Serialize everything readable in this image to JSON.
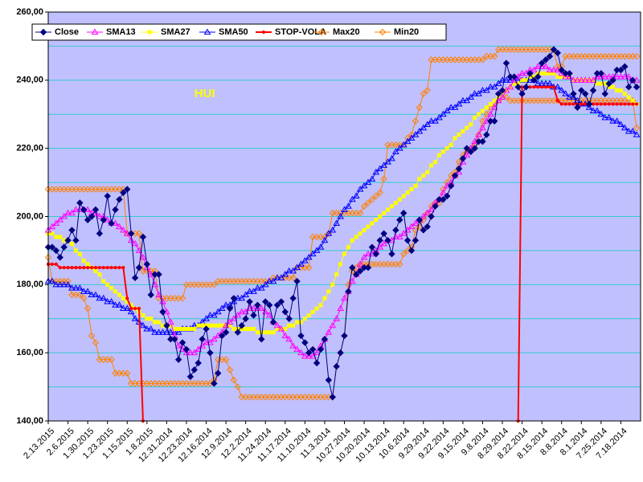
{
  "chart_data": {
    "type": "line",
    "annotation": {
      "text": "HUI",
      "x_index": 37,
      "y": 236
    },
    "categories": [
      "2.13.2015",
      null,
      null,
      null,
      null,
      "2.6.2015",
      null,
      null,
      null,
      null,
      "1.30.2015",
      null,
      null,
      null,
      null,
      "1.23.2015",
      null,
      null,
      null,
      null,
      "1.15.2015",
      null,
      null,
      null,
      null,
      "1.8.2015",
      null,
      null,
      null,
      null,
      "12.31.2014",
      null,
      null,
      null,
      null,
      "12.23.2014",
      null,
      null,
      null,
      null,
      "12.16.2014",
      null,
      null,
      null,
      null,
      "12.9.2014",
      null,
      null,
      null,
      null,
      "12.2.2014",
      null,
      null,
      null,
      null,
      "11.24.2014",
      null,
      null,
      null,
      null,
      "11.17.2014",
      null,
      null,
      null,
      null,
      "11.10.2014",
      null,
      null,
      null,
      null,
      "11.3.2014",
      null,
      null,
      null,
      null,
      "10.27.2014",
      null,
      null,
      null,
      null,
      "10.20.2014",
      null,
      null,
      null,
      null,
      "10.13.2014",
      null,
      null,
      null,
      null,
      "10.6.2014",
      null,
      null,
      null,
      null,
      "9.29.2014",
      null,
      null,
      null,
      null,
      "9.22.2014",
      null,
      null,
      null,
      null,
      "9.15.2014",
      null,
      null,
      null,
      null,
      "9.8.2014",
      null,
      null,
      null,
      null,
      "8.29.2014",
      null,
      null,
      null,
      null,
      "8.22.2014",
      null,
      null,
      null,
      null,
      "8.15.2014",
      null,
      null,
      null,
      null,
      "8.8.2014",
      null,
      null,
      null,
      null,
      "8.1.2014",
      null,
      null,
      null,
      null,
      "7.25.2014",
      null,
      null,
      null,
      null,
      "7.18.2014",
      null,
      null,
      null,
      null
    ],
    "ylim": [
      140,
      260
    ],
    "yticks": [
      {
        "value": 140,
        "label": "140,00"
      },
      {
        "value": 160,
        "label": "160,00"
      },
      {
        "value": 180,
        "label": "180,00"
      },
      {
        "value": 200,
        "label": "200,00"
      },
      {
        "value": 220,
        "label": "220,00"
      },
      {
        "value": 240,
        "label": "240,00"
      },
      {
        "value": 260,
        "label": "260,00"
      }
    ],
    "minor_yticks": [
      150,
      170,
      190,
      210,
      230,
      250
    ],
    "grid": true,
    "grid_color": "#33cccc",
    "plot_background": "#c0c0ff",
    "legend": "top",
    "series": [
      {
        "name": "Close",
        "color": "#000080",
        "marker": "diamond",
        "filled": true,
        "values": [
          191,
          191,
          190,
          188,
          191,
          193,
          196,
          193,
          204,
          202,
          199,
          200,
          202,
          195,
          199,
          206,
          198,
          202,
          205,
          207,
          208,
          195,
          182,
          185,
          194,
          186,
          177,
          183,
          183,
          172,
          168,
          164,
          164,
          158,
          163,
          161,
          153,
          155,
          157,
          164,
          167,
          160,
          151,
          154,
          165,
          166,
          173,
          176,
          166,
          168,
          170,
          175,
          171,
          174,
          164,
          175,
          174,
          169,
          174,
          175,
          172,
          170,
          176,
          181,
          165,
          163,
          160,
          161,
          157,
          161,
          164,
          152,
          147,
          156,
          160,
          165,
          178,
          185,
          183,
          184,
          185,
          185,
          191,
          189,
          193,
          195,
          193,
          189,
          196,
          199,
          201,
          193,
          190,
          193,
          199,
          196,
          197,
          200,
          203,
          205,
          205,
          206,
          209,
          212,
          214,
          217,
          220,
          219,
          220,
          222,
          222,
          224,
          228,
          228,
          236,
          237,
          245,
          241,
          241,
          238,
          236,
          238,
          242,
          240,
          241,
          245,
          246,
          247,
          249,
          248,
          243,
          242,
          242,
          236,
          232,
          237,
          236,
          233,
          237,
          242,
          242,
          236,
          239,
          240,
          243,
          243,
          244,
          238,
          240,
          238
        ]
      },
      {
        "name": "SMA13",
        "color": "#ff00ff",
        "marker": "triangle",
        "filled": false,
        "values": [
          196,
          197,
          198,
          199,
          200,
          201,
          201,
          202,
          202,
          202,
          202,
          201,
          201,
          200,
          200,
          199,
          198,
          198,
          197,
          196,
          195,
          193,
          192,
          190,
          188,
          185,
          183,
          180,
          177,
          175,
          172,
          169,
          165,
          162,
          161,
          160,
          160,
          160,
          161,
          162,
          163,
          163,
          164,
          165,
          166,
          168,
          169,
          170,
          171,
          172,
          172,
          173,
          173,
          173,
          173,
          172,
          171,
          169,
          168,
          167,
          165,
          164,
          162,
          161,
          160,
          159,
          159,
          159,
          160,
          162,
          164,
          166,
          168,
          170,
          173,
          176,
          178,
          181,
          183,
          186,
          188,
          189,
          189,
          190,
          191,
          192,
          193,
          193,
          194,
          194,
          195,
          196,
          197,
          198,
          199,
          200,
          201,
          202,
          204,
          205,
          207,
          209,
          210,
          212,
          213,
          216,
          218,
          220,
          222,
          224,
          226,
          228,
          230,
          232,
          234,
          235,
          237,
          238,
          240,
          241,
          242,
          242,
          243,
          243,
          244,
          244,
          244,
          243,
          243,
          243,
          242,
          241,
          241,
          240,
          240,
          240,
          240,
          240,
          240,
          241,
          241,
          241,
          241,
          241,
          241,
          241,
          241,
          241,
          240,
          240
        ]
      },
      {
        "name": "SMA27",
        "color": "#ffff00",
        "marker": "square",
        "filled": true,
        "values": [
          195,
          195,
          194,
          194,
          193,
          193,
          192,
          190,
          189,
          187,
          186,
          185,
          184,
          183,
          181,
          180,
          179,
          178,
          177,
          176,
          175,
          174,
          173,
          172,
          171,
          170,
          170,
          169,
          169,
          168,
          168,
          168,
          167,
          167,
          167,
          167,
          167,
          167,
          168,
          168,
          168,
          168,
          168,
          168,
          168,
          168,
          168,
          167,
          167,
          167,
          167,
          167,
          167,
          166,
          166,
          166,
          166,
          166,
          167,
          167,
          167,
          168,
          168,
          169,
          169,
          170,
          171,
          172,
          173,
          174,
          176,
          178,
          180,
          183,
          186,
          189,
          191,
          193,
          194,
          195,
          196,
          197,
          198,
          199,
          200,
          201,
          202,
          203,
          204,
          205,
          206,
          207,
          208,
          209,
          211,
          212,
          213,
          215,
          216,
          218,
          219,
          220,
          221,
          223,
          224,
          225,
          226,
          227,
          229,
          230,
          231,
          232,
          233,
          234,
          235,
          236,
          237,
          238,
          239,
          239,
          240,
          240,
          241,
          241,
          242,
          242,
          242,
          242,
          242,
          241,
          241,
          241,
          241,
          240,
          240,
          240,
          240,
          240,
          240,
          239,
          239,
          239,
          238,
          238,
          237,
          237,
          236,
          235,
          234,
          233
        ]
      },
      {
        "name": "SMA50",
        "color": "#0000ff",
        "marker": "triangle",
        "filled": false,
        "values": [
          181,
          181,
          180,
          180,
          180,
          180,
          179,
          179,
          179,
          178,
          178,
          177,
          177,
          176,
          176,
          175,
          175,
          174,
          174,
          173,
          173,
          172,
          170,
          169,
          168,
          167,
          167,
          166,
          166,
          166,
          166,
          166,
          166,
          166,
          167,
          167,
          167,
          168,
          168,
          169,
          170,
          171,
          171,
          172,
          173,
          174,
          174,
          175,
          176,
          176,
          177,
          178,
          178,
          179,
          179,
          180,
          181,
          181,
          182,
          182,
          183,
          184,
          184,
          185,
          186,
          187,
          188,
          189,
          190,
          191,
          193,
          195,
          196,
          198,
          200,
          202,
          203,
          205,
          206,
          208,
          209,
          210,
          211,
          213,
          214,
          215,
          216,
          217,
          219,
          220,
          221,
          222,
          223,
          224,
          225,
          226,
          227,
          228,
          228,
          229,
          230,
          231,
          232,
          232,
          233,
          234,
          234,
          235,
          236,
          236,
          237,
          237,
          238,
          238,
          239,
          240,
          240,
          240,
          240,
          240,
          240,
          240,
          240,
          240,
          239,
          239,
          239,
          239,
          238,
          238,
          237,
          236,
          235,
          235,
          234,
          233,
          233,
          232,
          231,
          231,
          230,
          229,
          229,
          228,
          228,
          227,
          226,
          225,
          225,
          224
        ]
      },
      {
        "name": "STOP-VOLA",
        "color": "#ff0000",
        "marker": "dot",
        "filled": true,
        "values": [
          186,
          186,
          186,
          185,
          185,
          185,
          185,
          185,
          185,
          185,
          185,
          185,
          185,
          185,
          185,
          185,
          185,
          185,
          185,
          185,
          176,
          173,
          173,
          173,
          140,
          null,
          null,
          null,
          null,
          null,
          null,
          null,
          null,
          null,
          null,
          null,
          null,
          null,
          null,
          null,
          null,
          null,
          null,
          null,
          null,
          null,
          null,
          null,
          null,
          null,
          null,
          null,
          null,
          null,
          null,
          null,
          null,
          null,
          null,
          null,
          null,
          null,
          null,
          null,
          null,
          null,
          null,
          null,
          null,
          null,
          null,
          null,
          null,
          null,
          null,
          null,
          null,
          null,
          null,
          null,
          null,
          null,
          null,
          null,
          null,
          null,
          null,
          null,
          null,
          null,
          null,
          null,
          null,
          null,
          null,
          null,
          null,
          null,
          null,
          null,
          null,
          null,
          null,
          null,
          null,
          null,
          null,
          null,
          null,
          null,
          null,
          null,
          null,
          null,
          null,
          null,
          null,
          null,
          null,
          140,
          238,
          238,
          238,
          238,
          238,
          238,
          238,
          238,
          238,
          234,
          233,
          233,
          233,
          233,
          233,
          233,
          233,
          233,
          233,
          233,
          233,
          233,
          233,
          233,
          233,
          233,
          233,
          233,
          233,
          233
        ]
      },
      {
        "name": "Max20",
        "color": "#ff8000",
        "marker": "diamond",
        "filled": false,
        "values": [
          208,
          208,
          208,
          208,
          208,
          208,
          208,
          208,
          208,
          208,
          208,
          208,
          208,
          208,
          208,
          208,
          208,
          208,
          208,
          208,
          195,
          195,
          195,
          195,
          184,
          184,
          184,
          184,
          176,
          176,
          176,
          176,
          176,
          176,
          176,
          180,
          180,
          180,
          180,
          180,
          180,
          180,
          180,
          181,
          181,
          181,
          181,
          181,
          181,
          181,
          181,
          181,
          181,
          181,
          181,
          181,
          181,
          182,
          182,
          182,
          182,
          182,
          182,
          185,
          185,
          185,
          185,
          194,
          194,
          194,
          194,
          195,
          201,
          201,
          201,
          201,
          201,
          201,
          201,
          201,
          203,
          204,
          205,
          206,
          207,
          211,
          221,
          221,
          221,
          221,
          221,
          223,
          224,
          228,
          232,
          236,
          237,
          246,
          246,
          246,
          246,
          246,
          246,
          246,
          246,
          246,
          246,
          246,
          246,
          246,
          246,
          247,
          247,
          247,
          249,
          249,
          249,
          249,
          249,
          249,
          249,
          249,
          249,
          249,
          249,
          249,
          249,
          249,
          249,
          244,
          244,
          247,
          247,
          247,
          247,
          247,
          247,
          247,
          247,
          247,
          247,
          247,
          247,
          247,
          247,
          247,
          247,
          247,
          247,
          247
        ]
      },
      {
        "name": "Min20",
        "color": "#ff8000",
        "marker": "diamond",
        "filled": false,
        "values": [
          188,
          181,
          181,
          181,
          181,
          181,
          177,
          177,
          177,
          176,
          173,
          165,
          163,
          158,
          158,
          158,
          158,
          154,
          154,
          154,
          154,
          151,
          151,
          151,
          151,
          151,
          151,
          151,
          151,
          151,
          151,
          151,
          151,
          151,
          151,
          151,
          151,
          151,
          151,
          151,
          151,
          151,
          152,
          158,
          158,
          158,
          155,
          152,
          150,
          147,
          147,
          147,
          147,
          147,
          147,
          147,
          147,
          147,
          147,
          147,
          147,
          147,
          147,
          147,
          147,
          147,
          147,
          147,
          147,
          147,
          147,
          147,
          147,
          156,
          160,
          165,
          180,
          184,
          185,
          186,
          186,
          186,
          186,
          186,
          186,
          186,
          186,
          186,
          186,
          186,
          189,
          190,
          191,
          196,
          197,
          199,
          201,
          203,
          204,
          204,
          208,
          210,
          212,
          213,
          216,
          218,
          219,
          220,
          221,
          224,
          228,
          230,
          232,
          233,
          234,
          235,
          235,
          234,
          234,
          234,
          234,
          234,
          234,
          234,
          234,
          234,
          234,
          234,
          234,
          234,
          234,
          234,
          234,
          234,
          234,
          234,
          234,
          234,
          234,
          234,
          234,
          234,
          234,
          234,
          234,
          234,
          234,
          234,
          234,
          226
        ]
      }
    ]
  }
}
